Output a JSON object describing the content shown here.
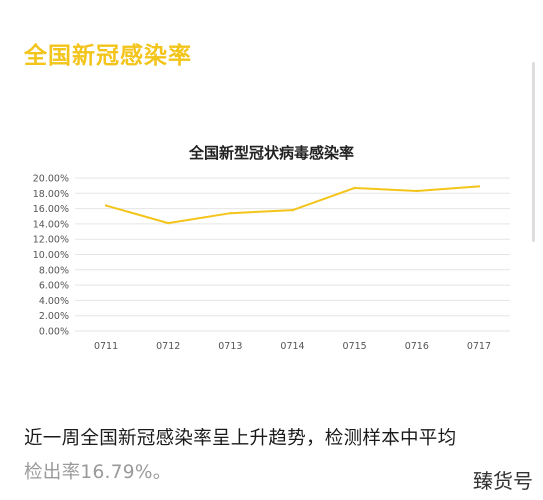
{
  "header": {
    "title": "全国新冠感染率"
  },
  "chart_data": {
    "type": "line",
    "title": "全国新型冠状病毒感染率",
    "categories": [
      "0711",
      "0712",
      "0713",
      "0714",
      "0715",
      "0716",
      "0717"
    ],
    "values": [
      16.4,
      14.1,
      15.4,
      15.8,
      18.7,
      18.3,
      18.9
    ],
    "ylim": [
      0,
      20
    ],
    "yticks": [
      "0.00%",
      "2.00%",
      "4.00%",
      "6.00%",
      "8.00%",
      "10.00%",
      "12.00%",
      "14.00%",
      "16.00%",
      "18.00%",
      "20.00%"
    ],
    "xlabel": "",
    "ylabel": "",
    "grid": true,
    "line_color": "#f3c41a",
    "grid_color": "#e5e5e5"
  },
  "body": {
    "paragraph_line1": "近一周全国新冠感染率呈上升趋势，检测样本中平均",
    "paragraph_line2": "检出率16.79%。"
  },
  "watermark": "臻货号"
}
